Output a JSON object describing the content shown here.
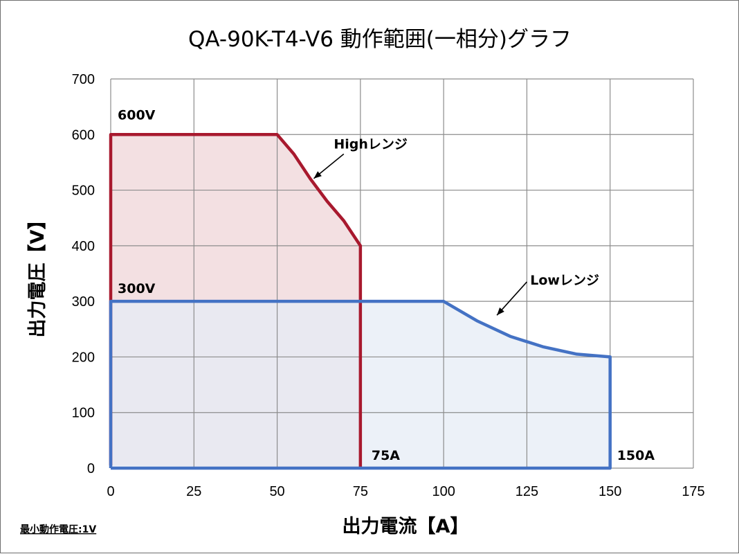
{
  "chart_data": {
    "type": "area",
    "title": "QA-90K-T4-V6  動作範囲(一相分)グラフ",
    "xlabel": "出力電流【A】",
    "ylabel": "出力電圧【V】",
    "xlim": [
      0,
      175
    ],
    "ylim": [
      0,
      700
    ],
    "xticks": [
      0,
      25,
      50,
      75,
      100,
      125,
      150,
      175
    ],
    "yticks": [
      0,
      100,
      200,
      300,
      400,
      500,
      600,
      700
    ],
    "grid": true,
    "series": [
      {
        "name": "Highレンジ",
        "color": "#a8192e",
        "fill": "#f3e0e2",
        "points": [
          [
            0,
            5
          ],
          [
            0,
            600
          ],
          [
            50,
            600
          ],
          [
            55,
            565
          ],
          [
            60,
            520
          ],
          [
            65,
            480
          ],
          [
            70,
            445
          ],
          [
            75,
            400
          ],
          [
            75,
            0
          ]
        ]
      },
      {
        "name": "Lowレンジ",
        "color": "#4472c4",
        "fill": "#e6ecf6",
        "points": [
          [
            0,
            0
          ],
          [
            0,
            300
          ],
          [
            100,
            300
          ],
          [
            110,
            265
          ],
          [
            120,
            237
          ],
          [
            130,
            218
          ],
          [
            140,
            205
          ],
          [
            150,
            200
          ],
          [
            150,
            0
          ],
          [
            0,
            0
          ]
        ]
      }
    ],
    "annotations": [
      {
        "id": "v600",
        "text": "600V"
      },
      {
        "id": "v300",
        "text": "300V"
      },
      {
        "id": "a75",
        "text": "75A"
      },
      {
        "id": "a150",
        "text": "150A"
      },
      {
        "id": "high",
        "text": "Highレンジ"
      },
      {
        "id": "low",
        "text": "Lowレンジ"
      }
    ],
    "note": "最小動作電圧:1V"
  }
}
